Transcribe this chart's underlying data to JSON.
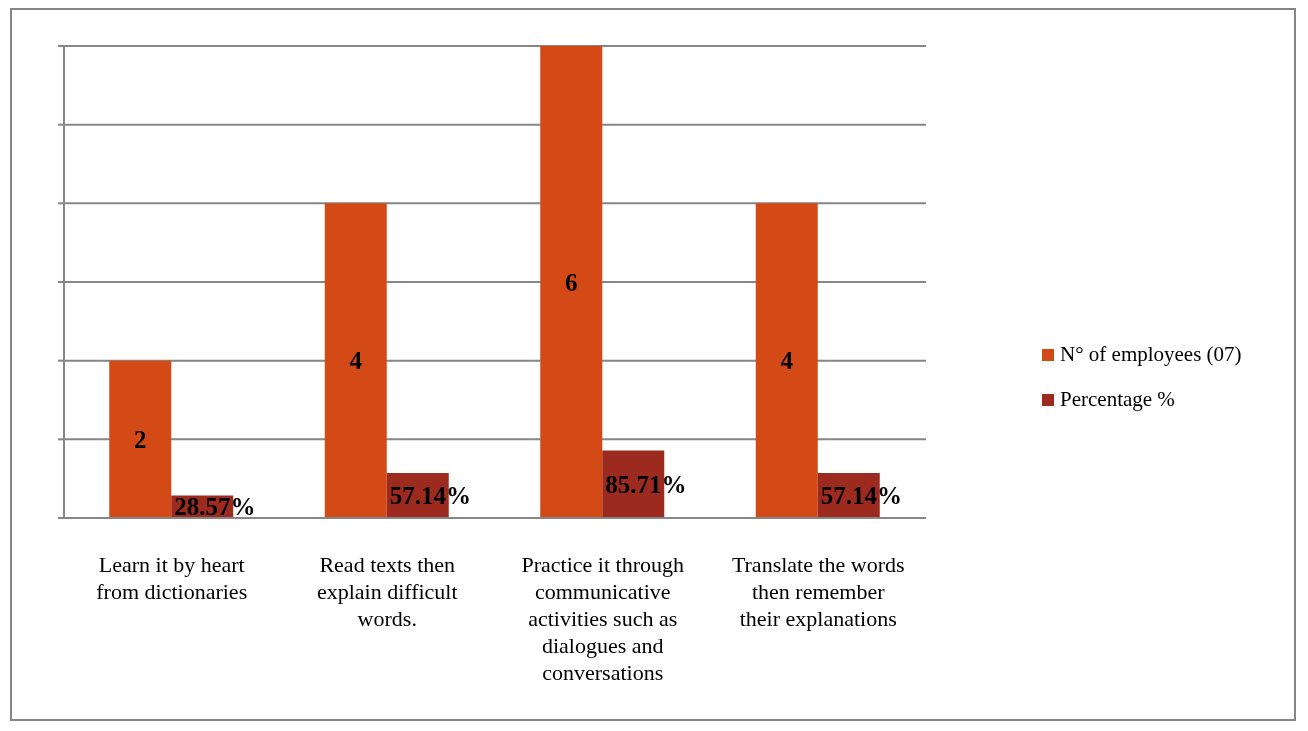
{
  "chart_data": {
    "type": "bar",
    "categories": [
      "Learn it by heart from dictionaries",
      "Read texts then explain difficult words.",
      "Practice it through communicative activities such as dialogues and conversations",
      "Translate the words then remember their explanations"
    ],
    "series": [
      {
        "name": "N° of employees (07)",
        "color": "#d44a17",
        "values": [
          2,
          4,
          6,
          4
        ],
        "value_labels": [
          "2",
          "4",
          "6",
          "4"
        ]
      },
      {
        "name": "Percentage %",
        "color": "#9c2a1e",
        "values": [
          0.2857,
          0.5714,
          0.8571,
          0.5714
        ],
        "value_labels": [
          "28.57%",
          "57.14%",
          "85.71%",
          "57.14%"
        ]
      }
    ],
    "ylim": [
      0,
      6
    ],
    "yticks": [
      {
        "value": 0,
        "label": null
      },
      {
        "value": 1,
        "label": null
      },
      {
        "value": 2,
        "label": null
      },
      {
        "value": 3,
        "label": null
      },
      {
        "value": 4,
        "label": null
      },
      {
        "value": 5,
        "label": null
      },
      {
        "value": 6,
        "label": null
      }
    ],
    "grid": "y",
    "legend": "right",
    "tick_labels": "x"
  }
}
